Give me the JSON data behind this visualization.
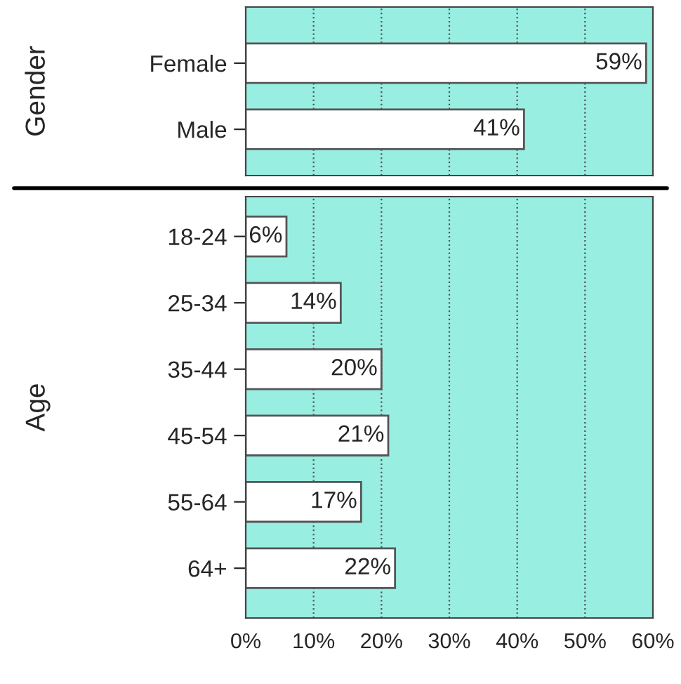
{
  "chart_data": [
    {
      "type": "bar",
      "orientation": "horizontal",
      "ylabel": "Gender",
      "categories": [
        "Female",
        "Male"
      ],
      "series": [
        {
          "color": "#ffffff",
          "values": [
            59,
            41
          ],
          "value_labels": [
            "59%",
            "41%"
          ]
        }
      ],
      "xlim": [
        0,
        60
      ],
      "xticks": [
        {
          "value": 0,
          "label": null
        },
        {
          "value": 10,
          "label": null
        },
        {
          "value": 20,
          "label": null
        },
        {
          "value": 30,
          "label": null
        },
        {
          "value": 40,
          "label": null
        },
        {
          "value": 50,
          "label": null
        },
        {
          "value": 60,
          "label": null
        }
      ],
      "grid": "x",
      "tick_labels": "y"
    },
    {
      "type": "bar",
      "orientation": "horizontal",
      "ylabel": "Age",
      "categories": [
        "18-24",
        "25-34",
        "35-44",
        "45-54",
        "55-64",
        "64+"
      ],
      "series": [
        {
          "color": "#ffffff",
          "values": [
            6,
            14,
            20,
            21,
            17,
            22
          ],
          "value_labels": [
            "6%",
            "14%",
            "20%",
            "21%",
            "17%",
            "22%"
          ]
        }
      ],
      "xlim": [
        0,
        60
      ],
      "xticks": [
        {
          "value": 0,
          "label": "0%"
        },
        {
          "value": 10,
          "label": "10%"
        },
        {
          "value": 20,
          "label": "20%"
        },
        {
          "value": 30,
          "label": "30%"
        },
        {
          "value": 40,
          "label": "40%"
        },
        {
          "value": 50,
          "label": "50%"
        },
        {
          "value": 60,
          "label": "60%"
        }
      ],
      "grid": "x"
    }
  ]
}
